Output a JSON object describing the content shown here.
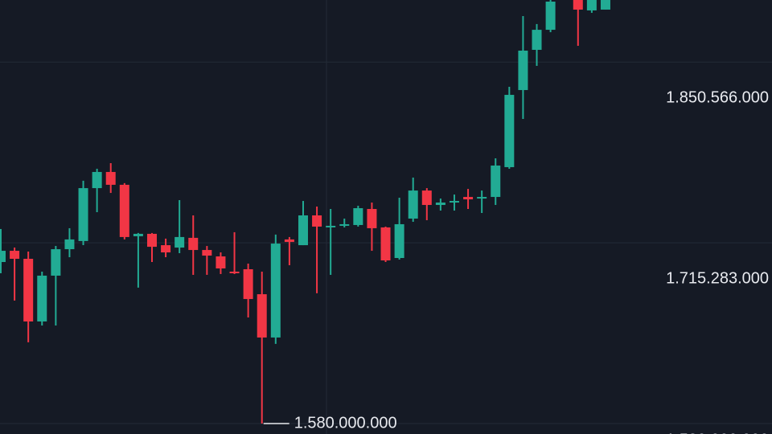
{
  "chart_data": {
    "type": "candlestick",
    "up_color": "#22ab94",
    "down_color": "#f23645",
    "ylim": [
      1580000,
      1897000
    ],
    "yticks": [
      {
        "value": 1850566,
        "label": "1.850.566.000"
      },
      {
        "value": 1715283,
        "label": "1.715.283.000"
      },
      {
        "value": 1580000,
        "label": "1.580.000.000"
      }
    ],
    "grid": true,
    "open": [
      1700900,
      1709300,
      1703300,
      1656400,
      1690700,
      1710500,
      1716600,
      1756200,
      1768300,
      1758700,
      1720200,
      1722000,
      1713500,
      1711700,
      1719000,
      1709900,
      1705100,
      1693700,
      1695500,
      1676800,
      1644400,
      1717800,
      1713500,
      1735800,
      1727400,
      1728000,
      1728600,
      1740600,
      1726800,
      1703900,
      1733400,
      1754400,
      1743600,
      1745400,
      1749600,
      1748400,
      1749600,
      1771900,
      1829600,
      1859700,
      1874700,
      null,
      1897000,
      1889200,
      1889800
    ],
    "high": [
      1725600,
      1711700,
      1708700,
      1693700,
      1712900,
      1726200,
      1761700,
      1770700,
      1774900,
      1759900,
      1722600,
      1722600,
      1718400,
      1747200,
      1735800,
      1712900,
      1708100,
      1723200,
      1699700,
      1693700,
      1721400,
      1719600,
      1746600,
      1742400,
      1740600,
      1733400,
      1743000,
      1745400,
      1727400,
      1749000,
      1764100,
      1756200,
      1748400,
      1751400,
      1755600,
      1754400,
      1778500,
      1832000,
      1885000,
      1879000,
      1897000,
      null,
      1897000,
      1897000,
      1897000
    ],
    "low": [
      1692500,
      1672000,
      1640800,
      1653400,
      1653400,
      1704500,
      1713500,
      1738200,
      1752600,
      1717800,
      1681700,
      1700900,
      1704500,
      1707500,
      1691300,
      1691300,
      1691900,
      1691900,
      1659400,
      1580000,
      1639600,
      1698500,
      1713500,
      1677500,
      1691300,
      1726800,
      1727400,
      1709300,
      1700900,
      1702700,
      1731000,
      1732200,
      1739400,
      1739400,
      1740600,
      1737600,
      1743600,
      1770700,
      1808000,
      1847700,
      1872900,
      null,
      1862700,
      1887400,
      1889800
    ],
    "close": [
      1709300,
      1703300,
      1656400,
      1690700,
      1710500,
      1717800,
      1756200,
      1768300,
      1758700,
      1719600,
      1722000,
      1712300,
      1708100,
      1719600,
      1709900,
      1705700,
      1696100,
      1692500,
      1673200,
      1644400,
      1714700,
      1715900,
      1735800,
      1727400,
      1728000,
      1729200,
      1741200,
      1726200,
      1702100,
      1729200,
      1754400,
      1743600,
      1745400,
      1746600,
      1747800,
      1749600,
      1773100,
      1826000,
      1859100,
      1874700,
      1895800,
      null,
      1889800,
      1897000,
      1897000
    ],
    "annotations": [
      {
        "text": "1.580.000.000",
        "value": 1580000
      }
    ]
  }
}
